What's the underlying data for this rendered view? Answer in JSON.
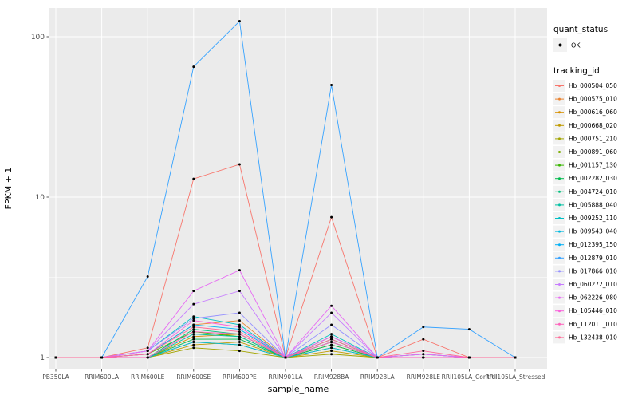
{
  "chart_data": {
    "type": "line",
    "title": "",
    "xlabel": "sample_name",
    "ylabel": "FPKM + 1",
    "y_scale": "log10",
    "y_ticks": [
      1,
      10,
      100
    ],
    "ylim": [
      1,
      151
    ],
    "grid": true,
    "panel_bg": "#EBEBEB",
    "grid_color": "#FFFFFF",
    "point_color": "#000000",
    "tick_text_color": "#4D4D4D",
    "legend_position": "right",
    "legend_key_bg": "#F2F2F2",
    "categories": [
      "PB350LA",
      "RRIM600LA",
      "RRIM600LE",
      "RRIM600SE",
      "RRIM600PE",
      "RRIM901LA",
      "RRIM928BA",
      "RRIM928LA",
      "RRIM928LE",
      "RRII105LA_Control",
      "RRII105LA_Stressed"
    ],
    "legend": {
      "quant_status_title": "quant_status",
      "quant_status_items": [
        {
          "label": "OK",
          "shape": "point"
        }
      ],
      "tracking_title": "tracking_id"
    },
    "series": [
      {
        "name": "Hb_000504_050",
        "color": "#F8766D",
        "values": [
          1,
          1,
          1.15,
          13,
          16,
          1,
          7.5,
          1,
          1.3,
          1,
          1
        ]
      },
      {
        "name": "Hb_000575_010",
        "color": "#EA8331",
        "values": [
          1,
          1,
          1.05,
          1.6,
          1.7,
          1,
          1.3,
          1,
          1.05,
          1,
          1
        ]
      },
      {
        "name": "Hb_000616_060",
        "color": "#D89000",
        "values": [
          1,
          1,
          1,
          1.35,
          1.4,
          1,
          1.2,
          1,
          1,
          1,
          1
        ]
      },
      {
        "name": "Hb_000668_020",
        "color": "#C09B00",
        "values": [
          1,
          1,
          1,
          1.2,
          1.25,
          1,
          1.1,
          1,
          1,
          1,
          1
        ]
      },
      {
        "name": "Hb_000751_210",
        "color": "#A3A500",
        "values": [
          1,
          1,
          1,
          1.15,
          1.1,
          1,
          1.05,
          1,
          1,
          1,
          1
        ]
      },
      {
        "name": "Hb_000891_060",
        "color": "#7CAE00",
        "values": [
          1,
          1,
          1,
          1.25,
          1.2,
          1,
          1.15,
          1,
          1,
          1,
          1
        ]
      },
      {
        "name": "Hb_001157_130",
        "color": "#39B600",
        "values": [
          1,
          1,
          1.05,
          1.45,
          1.35,
          1,
          1.25,
          1,
          1,
          1,
          1
        ]
      },
      {
        "name": "Hb_002282_030",
        "color": "#00BB4E",
        "values": [
          1,
          1,
          1,
          1.3,
          1.3,
          1,
          1.2,
          1,
          1,
          1,
          1
        ]
      },
      {
        "name": "Hb_004724_010",
        "color": "#00BF7D",
        "values": [
          1,
          1,
          1,
          1.5,
          1.4,
          1,
          1.3,
          1,
          1,
          1,
          1
        ]
      },
      {
        "name": "Hb_005888_040",
        "color": "#00C1A3",
        "values": [
          1,
          1,
          1,
          1.4,
          1.35,
          1,
          1.25,
          1,
          1,
          1,
          1
        ]
      },
      {
        "name": "Hb_009252_110",
        "color": "#00BFC4",
        "values": [
          1,
          1,
          1.1,
          1.8,
          1.6,
          1,
          1.4,
          1,
          1.05,
          1,
          1
        ]
      },
      {
        "name": "Hb_009543_040",
        "color": "#00BAE0",
        "values": [
          1,
          1,
          1,
          1.25,
          1.2,
          1,
          1.15,
          1,
          1,
          1,
          1
        ]
      },
      {
        "name": "Hb_012395_150",
        "color": "#00B0F6",
        "values": [
          1,
          1,
          1.05,
          1.6,
          1.5,
          1,
          1.35,
          1,
          1,
          1,
          1
        ]
      },
      {
        "name": "Hb_012879_010",
        "color": "#35A2FF",
        "values": [
          1,
          1,
          3.2,
          65,
          125,
          1,
          50,
          1,
          1.55,
          1.5,
          1
        ]
      },
      {
        "name": "Hb_017866_010",
        "color": "#9590FF",
        "values": [
          1,
          1,
          1.1,
          1.75,
          1.9,
          1,
          1.6,
          1,
          1.05,
          1,
          1
        ]
      },
      {
        "name": "Hb_060272_010",
        "color": "#C77CFF",
        "values": [
          1,
          1,
          1.1,
          2.15,
          2.6,
          1,
          1.9,
          1,
          1,
          1,
          1
        ]
      },
      {
        "name": "Hb_062226_080",
        "color": "#E76BF3",
        "values": [
          1,
          1,
          1.1,
          2.6,
          3.5,
          1,
          2.1,
          1,
          1.05,
          1,
          1
        ]
      },
      {
        "name": "Hb_105446_010",
        "color": "#FA62DB",
        "values": [
          1,
          1,
          1.05,
          1.7,
          1.55,
          1,
          1.35,
          1,
          1,
          1,
          1
        ]
      },
      {
        "name": "Hb_112011_010",
        "color": "#FF62BC",
        "values": [
          1,
          1,
          1,
          1.45,
          1.4,
          1,
          1.25,
          1,
          1,
          1,
          1
        ]
      },
      {
        "name": "Hb_132438_010",
        "color": "#FF6A98",
        "values": [
          1,
          1,
          1.05,
          1.55,
          1.45,
          1,
          1.3,
          1,
          1.1,
          1,
          1
        ]
      }
    ]
  }
}
